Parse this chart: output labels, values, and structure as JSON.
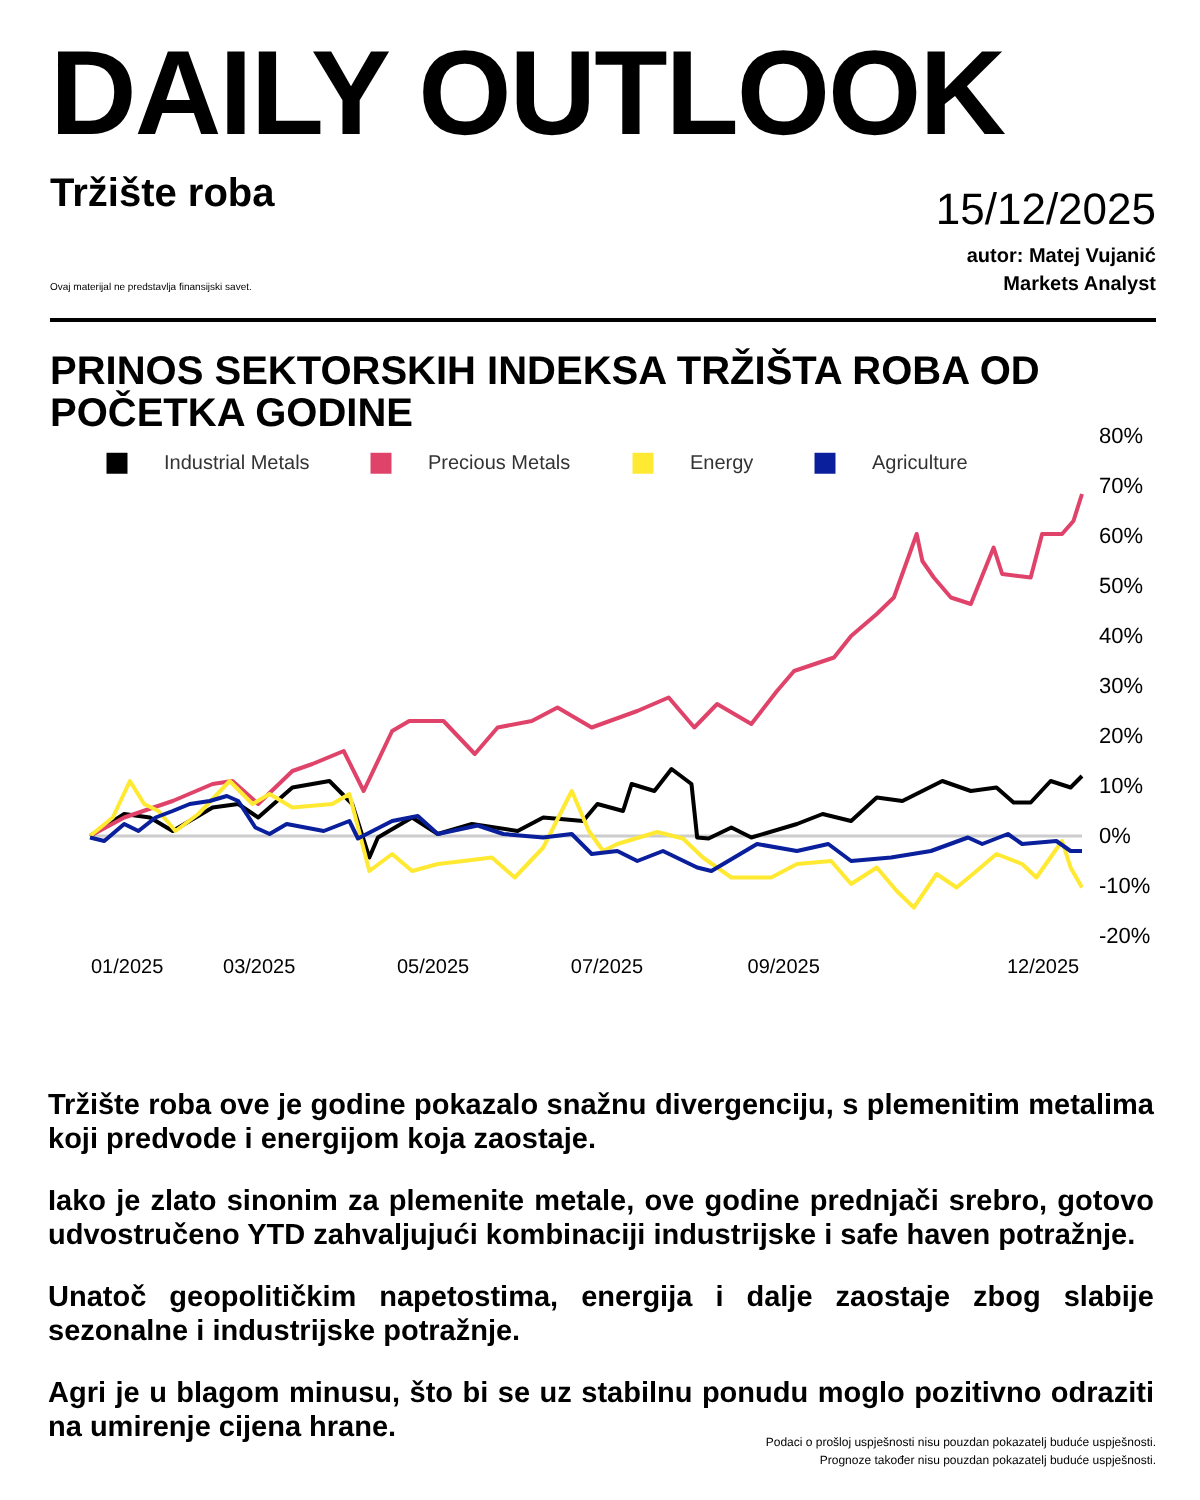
{
  "chart_data": {
    "type": "line",
    "title": "PRINOS SEKTORSKIH INDEKSA TRŽIŠTA ROBA OD POČETKA GODINE",
    "annotations": [
      "DAILY OUTLOOK",
      "Tržište roba",
      "Ovaj materijal ne predstavlja finansijski savet.",
      "15/12/2025",
      "autor: Matej Vujanić",
      "Markets Analyst",
      "Tržište roba ove je godine pokazalo snažnu divergenciju, s plemenitim metalima koji predvode i energijom koja zaostaje.",
      "Iako je zlato sinonim za plemenite metale, ove godine prednjači srebro, gotovo udvostručeno YTD zahvaljujući kombinaciji industrijske i safe haven potražnje.",
      "Unatoč geopolitičkim napetostima, energija i dalje zaostaje zbog slabije sezonalne i industrijske potražnje.",
      "Agri je u blagom minusu, što bi se uz stabilnu ponudu moglo pozitivno odraziti na umirenje cijena hrane.",
      "Podaci o prošloj uspješnosti nisu pouzdan pokazatelj buduće uspješnosti.",
      "Prognoze također nisu pouzdan pokazatelj buduće uspješnosti."
    ],
    "series": [
      {
        "name": "Industrial Metals",
        "color": "#000000",
        "x": [
          "2025-01-01",
          "2025-01-13",
          "2025-01-22",
          "2025-01-30",
          "2025-02-13",
          "2025-02-22",
          "2025-03-01",
          "2025-03-13",
          "2025-03-26",
          "2025-04-03",
          "2025-04-09",
          "2025-04-12",
          "2025-04-24",
          "2025-05-03",
          "2025-05-15",
          "2025-05-31",
          "2025-06-09",
          "2025-06-23",
          "2025-06-28",
          "2025-07-07",
          "2025-07-10",
          "2025-07-18",
          "2025-07-24",
          "2025-07-31",
          "2025-08-02",
          "2025-08-06",
          "2025-08-14",
          "2025-08-21",
          "2025-09-06",
          "2025-09-15",
          "2025-09-25",
          "2025-10-04",
          "2025-10-13",
          "2025-10-27",
          "2025-11-06",
          "2025-11-15",
          "2025-11-21",
          "2025-11-27",
          "2025-12-04",
          "2025-12-11",
          "2025-12-15"
        ],
        "values": [
          0,
          4.4,
          3.7,
          1,
          5.7,
          6.4,
          3.7,
          9.7,
          11,
          6.4,
          -4.3,
          -0.3,
          3.7,
          0.4,
          2.4,
          1,
          3.7,
          3,
          6.4,
          5,
          10.4,
          9,
          13.4,
          10.4,
          -0.3,
          -0.5,
          1.7,
          -0.3,
          2.4,
          4.4,
          3,
          7.7,
          7,
          11,
          9,
          9.7,
          6.7,
          6.7,
          11,
          9.7,
          12
        ]
      },
      {
        "name": "Precious Metals",
        "color": "#e0436a",
        "x": [
          "2025-01-01",
          "2025-01-13",
          "2025-01-30",
          "2025-02-13",
          "2025-02-20",
          "2025-03-01",
          "2025-03-13",
          "2025-03-20",
          "2025-03-31",
          "2025-04-07",
          "2025-04-17",
          "2025-04-23",
          "2025-05-05",
          "2025-05-16",
          "2025-05-24",
          "2025-06-05",
          "2025-06-14",
          "2025-06-26",
          "2025-07-12",
          "2025-07-23",
          "2025-08-01",
          "2025-08-09",
          "2025-08-21",
          "2025-08-30",
          "2025-09-05",
          "2025-09-19",
          "2025-09-25",
          "2025-10-04",
          "2025-10-10",
          "2025-10-18",
          "2025-10-20",
          "2025-10-24",
          "2025-10-30",
          "2025-11-06",
          "2025-11-14",
          "2025-11-17",
          "2025-11-27",
          "2025-12-01",
          "2025-12-08",
          "2025-12-12",
          "2025-12-15"
        ],
        "values": [
          0,
          3.7,
          7,
          10.4,
          11,
          6.4,
          13,
          14.4,
          17,
          9,
          21,
          23,
          23,
          16.4,
          21.7,
          23,
          25.7,
          21.7,
          25,
          27.7,
          21.7,
          26.4,
          22.4,
          29,
          33,
          35.7,
          40,
          44.4,
          47.7,
          60.4,
          55,
          51.7,
          47.7,
          46.4,
          57.7,
          52.4,
          51.7,
          60.4,
          60.4,
          63,
          68.4
        ]
      },
      {
        "name": "Energy",
        "color": "#ffe933",
        "x": [
          "2025-01-01",
          "2025-01-09",
          "2025-01-15",
          "2025-01-20",
          "2025-01-25",
          "2025-01-31",
          "2025-02-08",
          "2025-02-19",
          "2025-02-27",
          "2025-03-05",
          "2025-03-13",
          "2025-03-27",
          "2025-04-02",
          "2025-04-09",
          "2025-04-17",
          "2025-04-24",
          "2025-05-03",
          "2025-05-12",
          "2025-05-22",
          "2025-05-30",
          "2025-06-09",
          "2025-06-19",
          "2025-06-25",
          "2025-06-30",
          "2025-07-05",
          "2025-07-19",
          "2025-07-28",
          "2025-08-04",
          "2025-08-14",
          "2025-08-28",
          "2025-09-06",
          "2025-09-18",
          "2025-09-25",
          "2025-10-04",
          "2025-10-11",
          "2025-10-17",
          "2025-10-25",
          "2025-11-01",
          "2025-11-08",
          "2025-11-15",
          "2025-11-24",
          "2025-11-29",
          "2025-12-08",
          "2025-12-11",
          "2025-12-15"
        ],
        "values": [
          0,
          3.7,
          11,
          6.4,
          5,
          1,
          4.4,
          11,
          6.4,
          8.4,
          5.7,
          6.4,
          8.4,
          -7,
          -3.6,
          -7,
          -5.6,
          -5,
          -4.3,
          -8.3,
          -2.3,
          9,
          1,
          -3,
          -1.6,
          0.8,
          -0.5,
          -4.3,
          -8.3,
          -8.3,
          -5.6,
          -5,
          -9.6,
          -6.3,
          -11,
          -14.3,
          -7.6,
          -10.3,
          -7,
          -3.6,
          -5.6,
          -8.3,
          -1,
          -6.3,
          -10.3
        ]
      },
      {
        "name": "Agriculture",
        "color": "#0a1f9c",
        "x": [
          "2025-01-01",
          "2025-01-06",
          "2025-01-13",
          "2025-01-18",
          "2025-01-24",
          "2025-01-30",
          "2025-02-05",
          "2025-02-12",
          "2025-02-18",
          "2025-02-22",
          "2025-02-28",
          "2025-03-05",
          "2025-03-11",
          "2025-03-24",
          "2025-04-02",
          "2025-04-05",
          "2025-04-17",
          "2025-04-26",
          "2025-05-03",
          "2025-05-17",
          "2025-05-26",
          "2025-06-09",
          "2025-06-19",
          "2025-06-26",
          "2025-07-05",
          "2025-07-12",
          "2025-07-21",
          "2025-08-02",
          "2025-08-07",
          "2025-08-23",
          "2025-09-06",
          "2025-09-17",
          "2025-09-25",
          "2025-10-09",
          "2025-10-23",
          "2025-11-05",
          "2025-11-10",
          "2025-11-19",
          "2025-11-24",
          "2025-12-06",
          "2025-12-11",
          "2025-12-15"
        ],
        "values": [
          -0.3,
          -1,
          2.4,
          1,
          3.7,
          5,
          6.4,
          7,
          8,
          7,
          1.7,
          0.4,
          2.4,
          1,
          3,
          -0.5,
          3,
          4,
          0.4,
          2.1,
          0.4,
          -0.3,
          0.4,
          -3.6,
          -3,
          -5,
          -3,
          -6.3,
          -7,
          -1.6,
          -3,
          -1.6,
          -5,
          -4.3,
          -3,
          -0.3,
          -1.6,
          0.4,
          -1.6,
          -1,
          -3,
          -3
        ]
      }
    ],
    "xlim": [
      "2025-01-01",
      "2025-12-15"
    ],
    "xticks": [
      {
        "value": "2025-01-01",
        "label": "01/2025"
      },
      {
        "value": "2025-03-01",
        "label": "03/2025"
      },
      {
        "value": "2025-05-01",
        "label": "05/2025"
      },
      {
        "value": "2025-07-01",
        "label": "07/2025"
      },
      {
        "value": "2025-09-01",
        "label": "09/2025"
      },
      {
        "value": "2025-12-01",
        "label": "12/2025"
      }
    ],
    "ylim": [
      -20,
      80
    ],
    "yticks": [
      {
        "value": -20,
        "label": "-20%"
      },
      {
        "value": -10,
        "label": "-10%"
      },
      {
        "value": 0,
        "label": "0%"
      },
      {
        "value": 10,
        "label": "10%"
      },
      {
        "value": 20,
        "label": "20%"
      },
      {
        "value": 30,
        "label": "30%"
      },
      {
        "value": 40,
        "label": "40%"
      },
      {
        "value": 50,
        "label": "50%"
      },
      {
        "value": 60,
        "label": "60%"
      },
      {
        "value": 70,
        "label": "70%"
      },
      {
        "value": 80,
        "label": "80%"
      }
    ],
    "ref_lines": [
      {
        "axis": "y",
        "value": 0,
        "color": "#cccccc"
      }
    ],
    "grid": false,
    "legend": "top left"
  }
}
